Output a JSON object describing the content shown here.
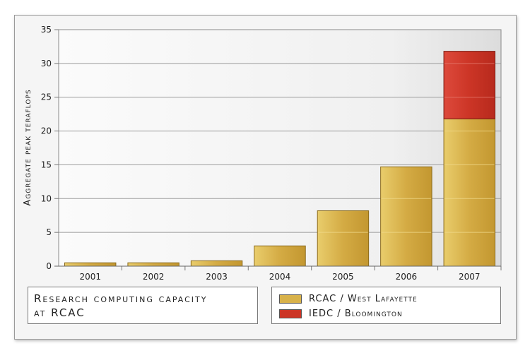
{
  "chart_data": {
    "type": "bar",
    "stacked": true,
    "categories": [
      "2001",
      "2002",
      "2003",
      "2004",
      "2005",
      "2006",
      "2007"
    ],
    "series": [
      {
        "name": "RCAC / West Lafayette",
        "values": [
          0.5,
          0.5,
          0.8,
          3.0,
          8.2,
          14.7,
          21.8
        ],
        "color": "#d8b24a"
      },
      {
        "name": "IEDC / Bloomington",
        "values": [
          0,
          0,
          0,
          0,
          0,
          0,
          10.0
        ],
        "color": "#cc3526"
      }
    ],
    "ylabel": "Aggregate peak teraflops",
    "ylim": [
      0,
      35
    ],
    "yticks": [
      "0",
      "5",
      "10",
      "15",
      "20",
      "25",
      "30",
      "35"
    ],
    "grid": true
  },
  "caption": {
    "line1": "Research computing capacity",
    "line2": "at RCAC"
  },
  "legend": {
    "items": [
      {
        "label": "RCAC / West Lafayette",
        "color": "#d8b24a"
      },
      {
        "label": "IEDC / Bloomington",
        "color": "#cc3526"
      }
    ]
  }
}
